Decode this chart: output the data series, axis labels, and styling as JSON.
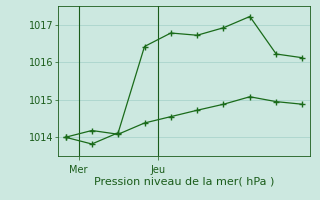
{
  "line1_x": [
    0,
    1,
    2,
    3,
    4,
    5,
    6,
    7,
    8,
    9
  ],
  "line1_y": [
    1014.0,
    1013.82,
    1014.12,
    1016.42,
    1016.78,
    1016.72,
    1016.92,
    1017.22,
    1016.22,
    1016.12
  ],
  "line2_x": [
    0,
    1,
    2,
    3,
    4,
    5,
    6,
    7,
    8,
    9
  ],
  "line2_y": [
    1014.0,
    1014.18,
    1014.08,
    1014.38,
    1014.55,
    1014.72,
    1014.88,
    1015.08,
    1014.95,
    1014.88
  ],
  "line_color": "#1a6b1a",
  "bg_color": "#cce8e0",
  "grid_color": "#aad4cc",
  "xlabel": "Pression niveau de la mer( hPa )",
  "xlabel_color": "#1a5c1a",
  "tick_color": "#1a5c1a",
  "yticks": [
    1014,
    1015,
    1016,
    1017
  ],
  "ylim": [
    1013.5,
    1017.5
  ],
  "xlim": [
    -0.3,
    9.3
  ],
  "mer_x": 0.5,
  "jeu_x": 3.5,
  "mer_label": "Mer",
  "jeu_label": "Jeu",
  "xlabel_fontsize": 8,
  "tick_fontsize": 7
}
